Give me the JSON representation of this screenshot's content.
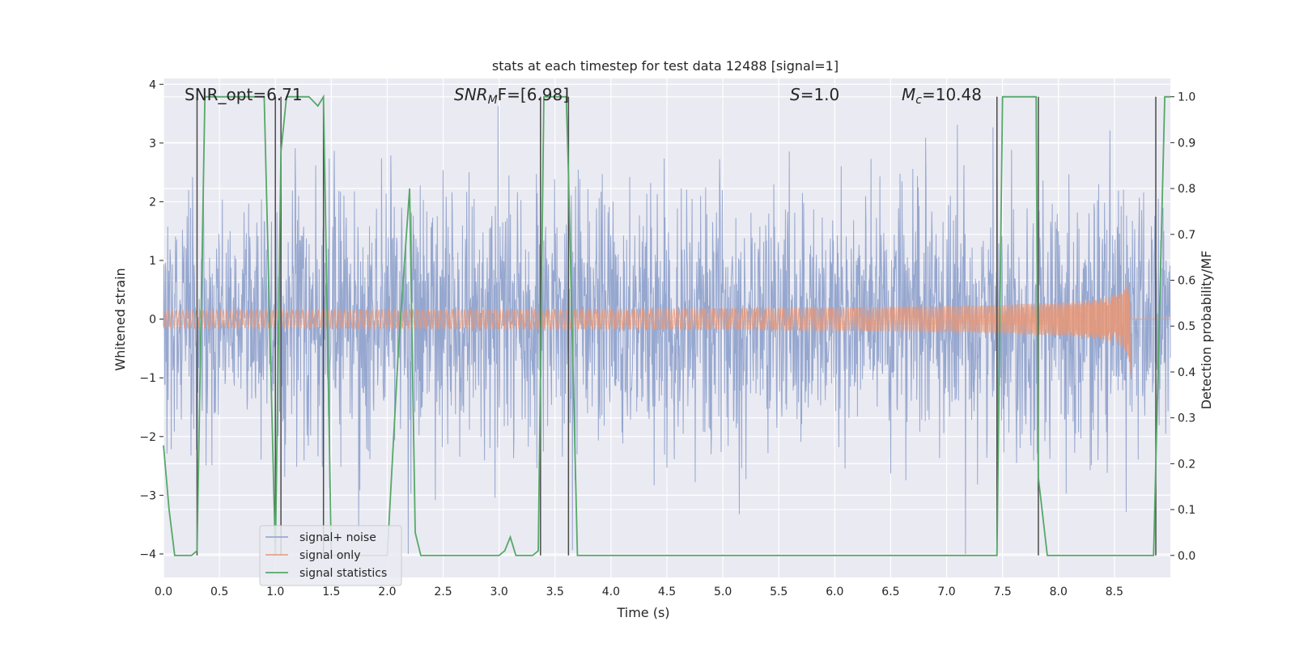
{
  "chart_data": {
    "type": "line",
    "title": "stats at each timestep for test data 12488 [signal=1]",
    "xlabel": "Time (s)",
    "ylabel": "Whitened strain",
    "y2label": "Detection probability/MF",
    "xlim": [
      0.0,
      9.0
    ],
    "ylim": [
      -4.4,
      4.1
    ],
    "y2lim": [
      -0.048,
      1.04
    ],
    "xticks": [
      "0.0",
      "0.5",
      "1.0",
      "1.5",
      "2.0",
      "2.5",
      "3.0",
      "3.5",
      "4.0",
      "4.5",
      "5.0",
      "5.5",
      "6.0",
      "6.5",
      "7.0",
      "7.5",
      "8.0",
      "8.5"
    ],
    "yticks": [
      "4",
      "3",
      "2",
      "1",
      "0",
      "−1",
      "−2",
      "−3",
      "−4"
    ],
    "y2ticks": [
      "1.0",
      "0.9",
      "0.8",
      "0.7",
      "0.6",
      "0.5",
      "0.4",
      "0.3",
      "0.2",
      "0.1",
      "0.0"
    ],
    "annotations": {
      "snr_opt": "SNR_opt=6.71",
      "snr_mf_main": "SNR",
      "snr_mf_sub": "M",
      "snr_mf_rest": "F=[6.98]",
      "s_main": "S",
      "s_rest": "=1.0",
      "mc_main": "M",
      "mc_sub": "c",
      "mc_rest": "=10.48"
    },
    "legend": {
      "location": "lower-left",
      "entries": [
        "signal+ noise",
        "signal only",
        "signal statistics"
      ]
    },
    "colors": {
      "noise": "#8da0cb",
      "signal": "#e99675",
      "statistics": "#55a868",
      "markers": "#4a4a4a",
      "background": "#eaeaf2",
      "grid": "#ffffff"
    },
    "series": [
      {
        "name": "signal+ noise",
        "description": "noisy whitened strain, amplitude mostly within -2 to 2 with spikes to about +/-4",
        "noise_std": 1.0,
        "x_range": [
          0.0,
          9.0
        ]
      },
      {
        "name": "signal only",
        "description": "chirp signal growing in amplitude towards merger",
        "merger_time": 8.65,
        "peak_amplitude": 1.1,
        "x_range": [
          0.0,
          8.65
        ]
      },
      {
        "name": "signal statistics",
        "axis": "right",
        "x": [
          0.0,
          0.05,
          0.1,
          0.2,
          0.25,
          0.3,
          0.37,
          0.5,
          0.7,
          0.9,
          1.0,
          1.05,
          1.1,
          1.2,
          1.3,
          1.38,
          1.43,
          1.5,
          1.7,
          2.0,
          2.1,
          2.2,
          2.25,
          2.3,
          2.4,
          2.6,
          2.8,
          3.0,
          3.05,
          3.1,
          3.15,
          3.2,
          3.3,
          3.35,
          3.4,
          3.45,
          3.5,
          3.6,
          3.62,
          3.7,
          3.75,
          4.0,
          5.0,
          6.0,
          7.0,
          7.45,
          7.5,
          7.6,
          7.7,
          7.8,
          7.82,
          7.9,
          8.0,
          8.5,
          8.85,
          8.95,
          9.0
        ],
        "y": [
          0.24,
          0.1,
          0.0,
          0.0,
          0.0,
          0.01,
          1.0,
          1.0,
          1.0,
          1.0,
          0.0,
          0.88,
          1.0,
          1.0,
          1.0,
          0.98,
          1.0,
          0.0,
          0.0,
          0.0,
          0.45,
          0.8,
          0.05,
          0.0,
          0.0,
          0.0,
          0.0,
          0.0,
          0.01,
          0.04,
          0.0,
          0.0,
          0.0,
          0.01,
          1.0,
          1.0,
          1.0,
          1.0,
          0.83,
          0.0,
          0.0,
          0.0,
          0.0,
          0.0,
          0.0,
          0.0,
          1.0,
          1.0,
          1.0,
          1.0,
          0.17,
          0.0,
          0.0,
          0.0,
          0.0,
          1.0,
          1.0
        ]
      }
    ],
    "vertical_markers": {
      "description": "detection boundaries drawn as thin dark vertical lines",
      "x": [
        0.3,
        1.0,
        1.05,
        1.43,
        3.37,
        3.62,
        7.45,
        7.82,
        8.87
      ]
    }
  }
}
